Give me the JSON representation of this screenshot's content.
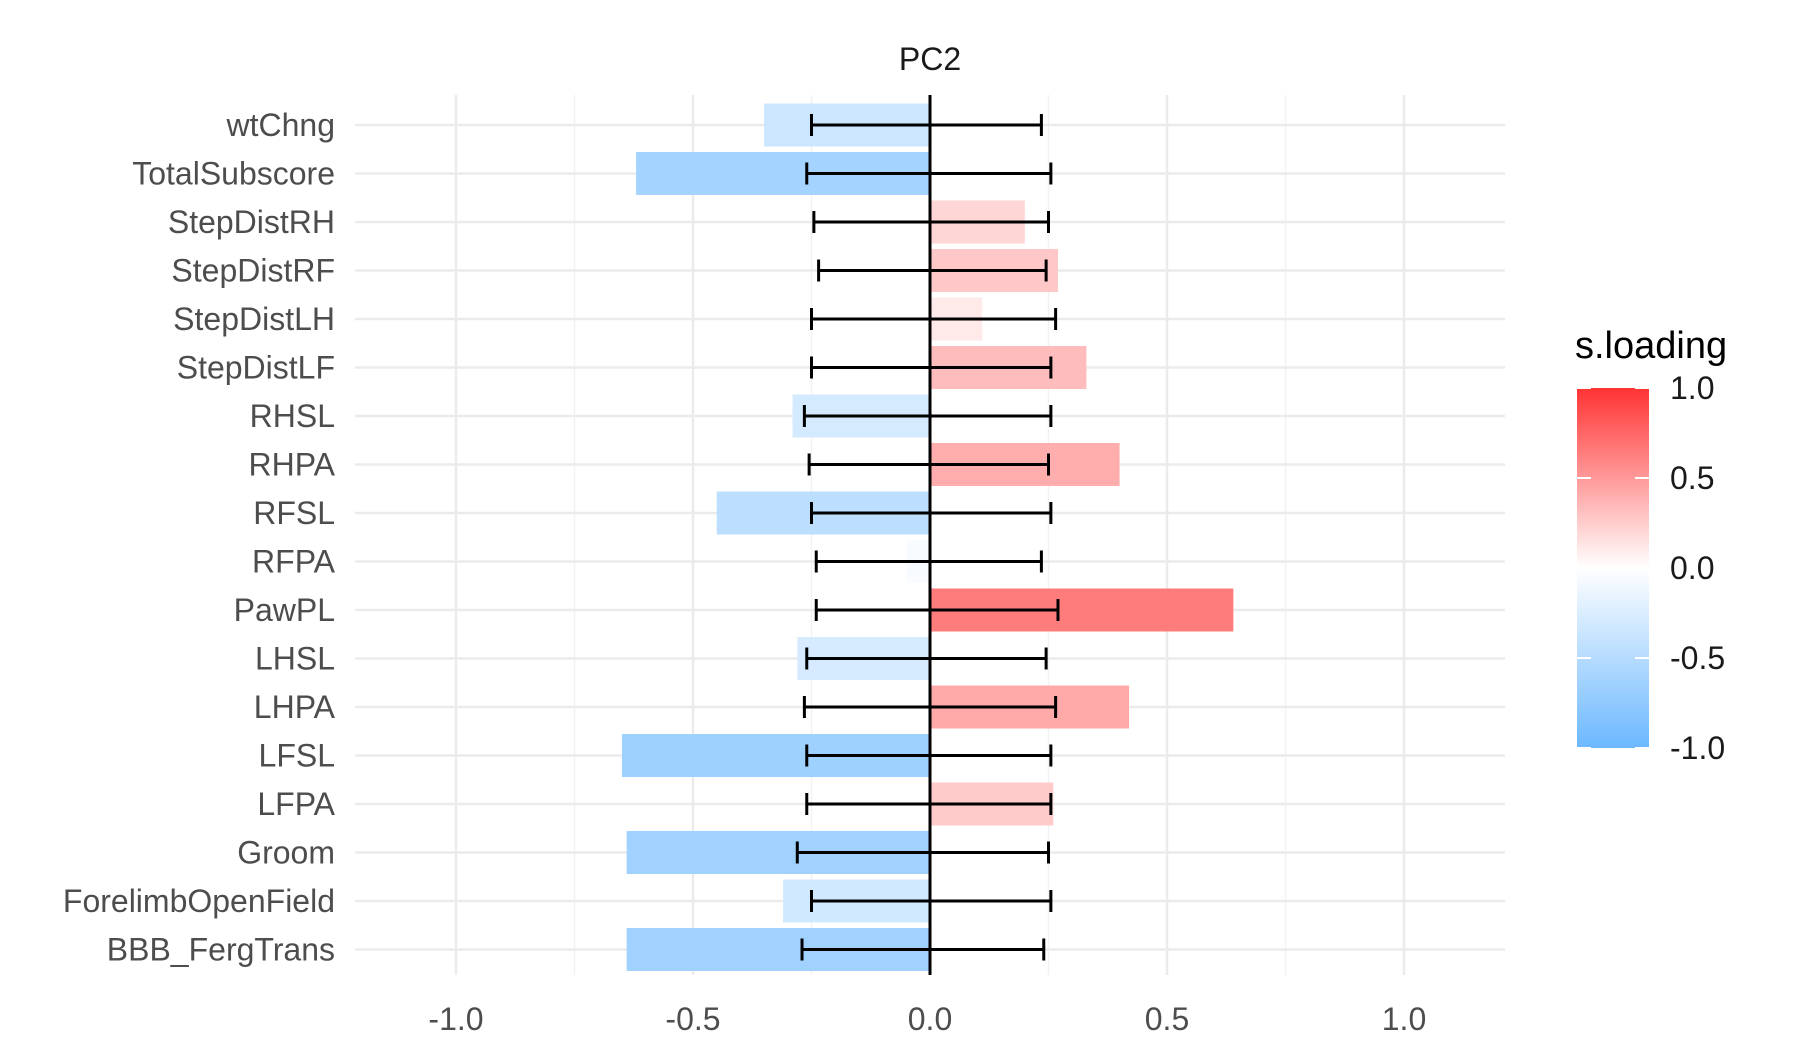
{
  "chart_data": {
    "type": "bar",
    "orientation": "horizontal",
    "title": "PC2",
    "xlabel": "",
    "ylabel": "",
    "xlim": [
      -1.2,
      1.2
    ],
    "x_ticks": [
      {
        "value": -1.0,
        "label": "-1.0"
      },
      {
        "value": -0.5,
        "label": "-0.5"
      },
      {
        "value": 0.0,
        "label": "0.0"
      },
      {
        "value": 0.5,
        "label": "0.5"
      },
      {
        "value": 1.0,
        "label": "1.0"
      }
    ],
    "grid": true,
    "categories": [
      "wtChng",
      "TotalSubscore",
      "StepDistRH",
      "StepDistRF",
      "StepDistLH",
      "StepDistLF",
      "RHSL",
      "RHPA",
      "RFSL",
      "RFPA",
      "PawPL",
      "LHSL",
      "LHPA",
      "LFSL",
      "LFPA",
      "Groom",
      "ForelimbOpenField",
      "BBB_FergTrans"
    ],
    "values": [
      -0.35,
      -0.62,
      0.2,
      0.27,
      0.11,
      0.33,
      -0.29,
      0.4,
      -0.45,
      -0.05,
      0.64,
      -0.28,
      0.42,
      -0.65,
      0.26,
      -0.64,
      -0.31,
      -0.64
    ],
    "error_low": [
      -0.25,
      -0.26,
      -0.245,
      -0.235,
      -0.25,
      -0.25,
      -0.265,
      -0.255,
      -0.25,
      -0.24,
      -0.24,
      -0.26,
      -0.265,
      -0.26,
      -0.26,
      -0.28,
      -0.25,
      -0.27
    ],
    "error_high": [
      0.235,
      0.255,
      0.25,
      0.245,
      0.265,
      0.255,
      0.255,
      0.25,
      0.255,
      0.235,
      0.27,
      0.245,
      0.265,
      0.255,
      0.255,
      0.25,
      0.255,
      0.24
    ],
    "legend": {
      "title": "s.loading",
      "position": "right",
      "ticks": [
        {
          "value": 1.0,
          "label": "1.0"
        },
        {
          "value": 0.5,
          "label": "0.5"
        },
        {
          "value": 0.0,
          "label": "0.0"
        },
        {
          "value": -0.5,
          "label": "-0.5"
        },
        {
          "value": -1.0,
          "label": "-1.0"
        }
      ],
      "range": [
        -1.0,
        1.0
      ],
      "color_low": "#6cb8ff",
      "color_mid": "#ffffff",
      "color_high": "#ff3333"
    }
  }
}
